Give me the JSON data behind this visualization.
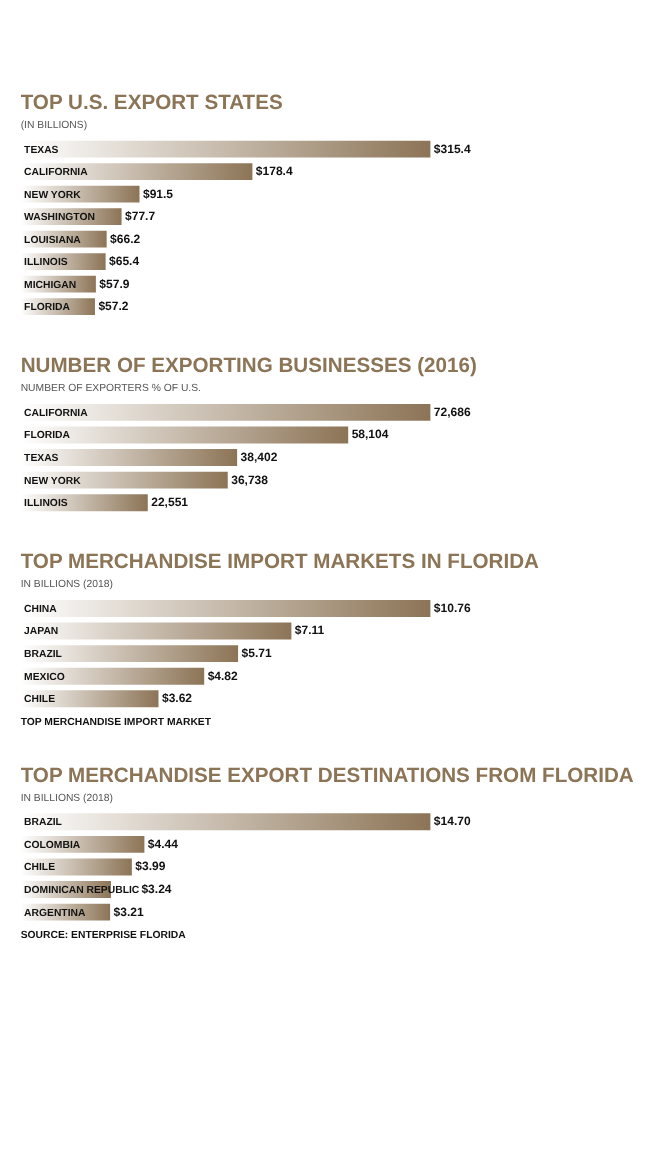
{
  "chart_data": [
    {
      "type": "bar",
      "orientation": "horizontal",
      "title": "TOP U.S. EXPORT STATES",
      "subtitle": "(IN BILLIONS)",
      "categories": [
        "TEXAS",
        "CALIFORNIA",
        "NEW YORK",
        "WASHINGTON",
        "LOUISIANA",
        "ILLINOIS",
        "MICHIGAN",
        "FLORIDA"
      ],
      "values": [
        315.4,
        178.4,
        91.5,
        77.7,
        66.2,
        65.4,
        57.9,
        57.2
      ],
      "value_labels": [
        "$315.4",
        "$178.4",
        "$91.5",
        "$77.7",
        "$66.2",
        "$65.4",
        "$57.9",
        "$57.2"
      ],
      "color": "#8c7456"
    },
    {
      "type": "bar",
      "orientation": "horizontal",
      "title": "NUMBER OF EXPORTING BUSINESSES (2016)",
      "subtitle": "NUMBER OF EXPORTERS % OF U.S.",
      "categories": [
        "CALIFORNIA",
        "FLORIDA",
        "TEXAS",
        "NEW YORK",
        "ILLINOIS"
      ],
      "values": [
        72686,
        58104,
        38402,
        36738,
        22551
      ],
      "value_labels": [
        "72,686",
        "58,104",
        "38,402",
        "36,738",
        "22,551"
      ],
      "color": "#8c7456"
    },
    {
      "type": "bar",
      "orientation": "horizontal",
      "title": "TOP MERCHANDISE IMPORT MARKETS IN FLORIDA",
      "subtitle": "IN BILLIONS (2018)",
      "categories": [
        "CHINA",
        "JAPAN",
        "BRAZIL",
        "MEXICO",
        "CHILE"
      ],
      "values": [
        10.76,
        7.11,
        5.71,
        4.82,
        3.62
      ],
      "value_labels": [
        "$10.76",
        "$7.11",
        "$5.71",
        "$4.82",
        "$3.62"
      ],
      "color": "#8c7456",
      "annotations": [
        "TOP MERCHANDISE IMPORT MARKET"
      ]
    },
    {
      "type": "bar",
      "orientation": "horizontal",
      "title": "TOP MERCHANDISE EXPORT DESTINATIONS FROM FLORIDA",
      "subtitle": "IN BILLIONS (2018)",
      "categories": [
        "BRAZIL",
        "COLOMBIA",
        "CHILE",
        "DOMINICAN REPUBLIC",
        "ARGENTINA"
      ],
      "values": [
        14.7,
        4.44,
        3.99,
        3.24,
        3.21
      ],
      "value_labels": [
        "$14.70",
        "$4.44",
        "$3.99",
        "$3.24",
        "$3.21"
      ],
      "color": "#8c7456",
      "annotations": [
        "SOURCE: ENTERPRISE FLORIDA"
      ]
    }
  ]
}
